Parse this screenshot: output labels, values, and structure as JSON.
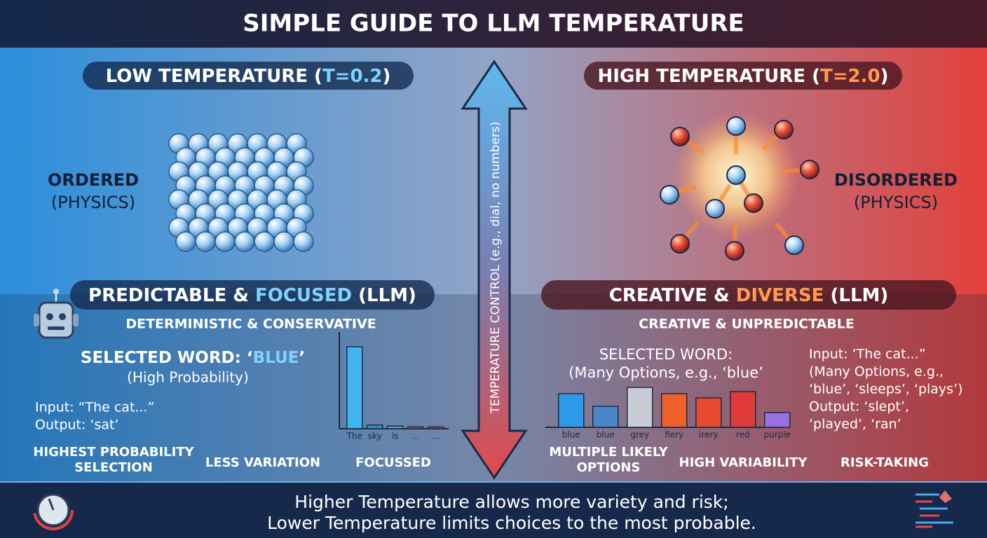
{
  "title": "SIMPLE GUIDE TO LLM TEMPERATURE",
  "center_arrow": "TEMPERATURE CONTROL (e.g., dial, no numbers)",
  "left": {
    "heading": [
      "LOW TEMPERATURE (",
      "T=0.2",
      ")"
    ],
    "physics": [
      "ORDERED",
      "(PHYSICS)"
    ],
    "llm_heading": [
      "PREDICTABLE & ",
      "FOCUSED",
      " (LLM)"
    ],
    "subheading": "DETERMINISTIC & CONSERVATIVE",
    "selected": [
      "SELECTED WORD: ‘",
      "BLUE",
      "’"
    ],
    "selected_note": "(High Probability)",
    "example": [
      "Input: “The cat...”",
      "Output: ‘sat’"
    ],
    "chart": {
      "type": "bar",
      "categories": [
        "The",
        "sky",
        "is",
        "...",
        "..."
      ],
      "values": [
        0.9,
        0.04,
        0.03,
        0.02,
        0.02
      ],
      "ylim": [
        0,
        1
      ],
      "colors": [
        "#3fb4ee",
        "#3a8fd0",
        "#6f8fc0",
        "#c05060",
        "#d04048"
      ]
    },
    "traits": [
      [
        "HIGHEST PROBABILITY",
        "SELECTION"
      ],
      [
        "LESS VARIATION"
      ],
      [
        "FOCUSSED"
      ]
    ]
  },
  "right": {
    "heading": [
      "HIGH TEMPERATURE (",
      "T=2.0",
      ")"
    ],
    "physics": [
      "DISORDERED",
      "(PHYSICS)"
    ],
    "llm_heading": [
      "CREATIVE & ",
      "DIVERSE",
      " (LLM)"
    ],
    "subheading": "CREATIVE & UNPREDICTABLE",
    "selected": [
      "SELECTED WORD:",
      "(Many Options, e.g., ‘blue’"
    ],
    "example": [
      "Input: ‘The cat...”",
      "(Many Options, e.g.,",
      "‘blue’, ‘sleeps’, ‘plays’)",
      "Output: ‘slept’,",
      "‘played’, ‘ran’"
    ],
    "chart": {
      "type": "bar",
      "categories": [
        "blue",
        "blue",
        "grey",
        "fiery",
        "irery",
        "red",
        "purple"
      ],
      "values": [
        0.16,
        0.1,
        0.19,
        0.16,
        0.14,
        0.17,
        0.07
      ],
      "ylim": [
        0,
        0.2
      ],
      "colors": [
        "#2f9be8",
        "#4a86c8",
        "#c8ccd4",
        "#f0602a",
        "#e84a30",
        "#e03a3a",
        "#9a70e0"
      ]
    },
    "traits": [
      [
        "MULTIPLE LIKELY",
        "OPTIONS"
      ],
      [
        "HIGH VARIABILITY"
      ],
      [
        "RISK-TAKING"
      ]
    ]
  },
  "footer": [
    "Higher Temperature allows more variety and risk;",
    "Lower Temperature limits choices to the most probable."
  ]
}
